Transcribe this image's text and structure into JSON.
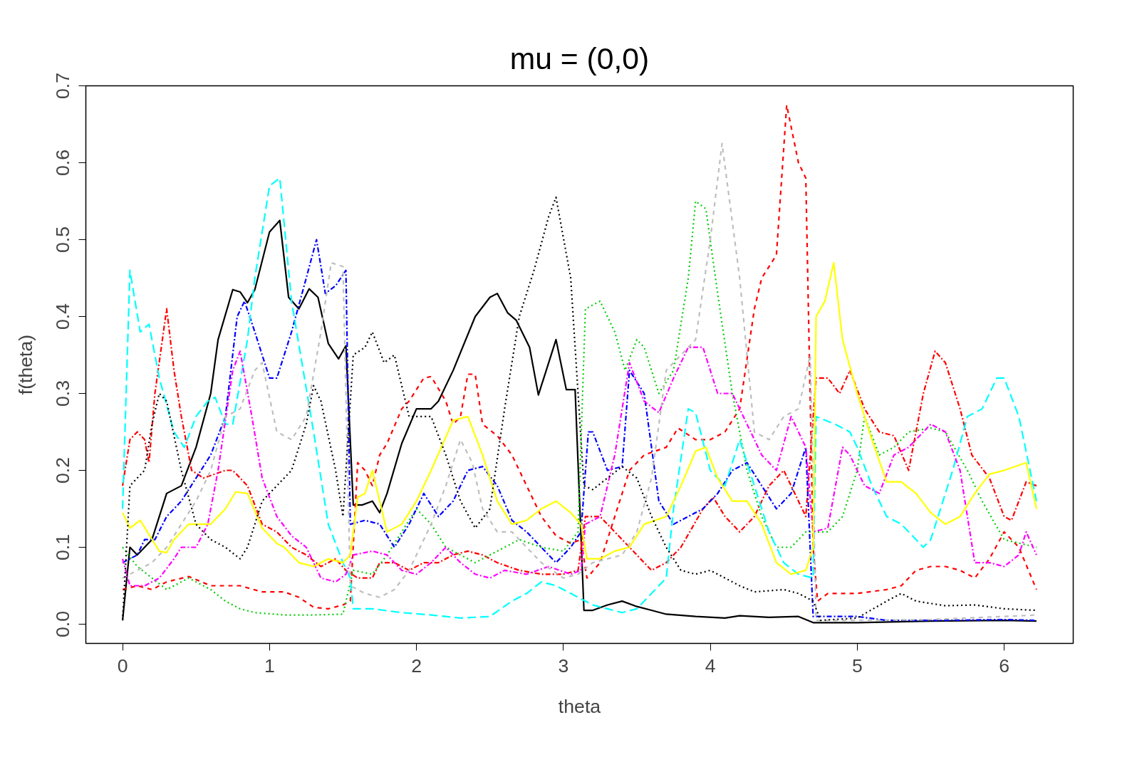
{
  "chart_data": {
    "type": "line",
    "title": "mu = (0,0)",
    "xlabel": "theta",
    "ylabel": "f(theta)",
    "xlim": [
      -0.25,
      6.47
    ],
    "ylim": [
      -0.025,
      0.7
    ],
    "xticks": [
      0,
      1,
      2,
      3,
      4,
      5,
      6
    ],
    "yticks": [
      {
        "value": 0,
        "label": "0.0"
      },
      0.1,
      0.2,
      0.3,
      0.4,
      0.5,
      0.6,
      0.7
    ],
    "grid": false,
    "marker": "none",
    "series": [
      {
        "color": "#000000",
        "line_style": "solid",
        "x": [
          0,
          0.05,
          0.1,
          0.2,
          0.3,
          0.4,
          0.5,
          0.6,
          0.65,
          0.75,
          0.8,
          0.85,
          0.9,
          1.0,
          1.07,
          1.13,
          1.2,
          1.27,
          1.33,
          1.4,
          1.47,
          1.52,
          1.57,
          1.63,
          1.7,
          1.75,
          1.8,
          1.9,
          2.0,
          2.1,
          2.15,
          2.25,
          2.4,
          2.5,
          2.55,
          2.62,
          2.68,
          2.77,
          2.83,
          2.9,
          2.95,
          3.02,
          3.08,
          3.14,
          3.2,
          3.3,
          3.4,
          3.5,
          3.6,
          3.7,
          3.9,
          4.1,
          4.2,
          4.4,
          4.6,
          4.7,
          5.0,
          5.5,
          6.0,
          6.22
        ],
        "values": [
          0.005,
          0.1,
          0.09,
          0.11,
          0.17,
          0.18,
          0.23,
          0.3,
          0.37,
          0.435,
          0.432,
          0.418,
          0.435,
          0.51,
          0.525,
          0.425,
          0.41,
          0.436,
          0.425,
          0.365,
          0.345,
          0.362,
          0.155,
          0.155,
          0.16,
          0.145,
          0.17,
          0.235,
          0.28,
          0.28,
          0.29,
          0.33,
          0.4,
          0.425,
          0.43,
          0.405,
          0.395,
          0.36,
          0.298,
          0.34,
          0.37,
          0.305,
          0.305,
          0.018,
          0.018,
          0.025,
          0.03,
          0.023,
          0.018,
          0.013,
          0.01,
          0.008,
          0.011,
          0.009,
          0.01,
          0.002,
          0.002,
          0.004,
          0.005,
          0.004
        ]
      },
      {
        "color": "#ff0000",
        "line_style": "dashed",
        "x": [
          0,
          0.1,
          0.2,
          0.3,
          0.45,
          0.6,
          0.8,
          0.95,
          1.1,
          1.2,
          1.3,
          1.4,
          1.5,
          1.55,
          1.6,
          1.65,
          1.7,
          1.75,
          1.8,
          1.9,
          1.95,
          2.05,
          2.1,
          2.2,
          2.25,
          2.3,
          2.35,
          2.4,
          2.45,
          2.55,
          2.65,
          2.75,
          2.85,
          2.95,
          3.05,
          3.12,
          3.16,
          3.25,
          3.35,
          3.45,
          3.55,
          3.7,
          3.78,
          3.9,
          4.0,
          4.1,
          4.2,
          4.3,
          4.35,
          4.45,
          4.52,
          4.6,
          4.65,
          4.7,
          4.73,
          4.8,
          5.0,
          5.2,
          5.3,
          5.4,
          5.5,
          5.6,
          5.7,
          5.8,
          5.9,
          6.0,
          6.1,
          6.22
        ],
        "values": [
          0.045,
          0.05,
          0.045,
          0.055,
          0.062,
          0.05,
          0.05,
          0.042,
          0.042,
          0.035,
          0.022,
          0.02,
          0.025,
          0.03,
          0.21,
          0.2,
          0.18,
          0.22,
          0.235,
          0.28,
          0.29,
          0.32,
          0.322,
          0.29,
          0.26,
          0.27,
          0.325,
          0.325,
          0.26,
          0.245,
          0.22,
          0.18,
          0.14,
          0.115,
          0.105,
          0.11,
          0.06,
          0.08,
          0.14,
          0.2,
          0.22,
          0.23,
          0.255,
          0.24,
          0.24,
          0.25,
          0.28,
          0.41,
          0.45,
          0.48,
          0.675,
          0.6,
          0.58,
          0.1,
          0.03,
          0.04,
          0.04,
          0.045,
          0.05,
          0.07,
          0.075,
          0.075,
          0.07,
          0.06,
          0.085,
          0.12,
          0.1,
          0.045
        ]
      },
      {
        "color": "#ff0000",
        "line_style": "dashdot",
        "x": [
          0,
          0.05,
          0.1,
          0.15,
          0.18,
          0.22,
          0.3,
          0.35,
          0.4,
          0.47,
          0.55,
          0.7,
          0.75,
          0.85,
          0.95,
          1.05,
          1.15,
          1.25,
          1.35,
          1.45,
          1.52,
          1.6,
          1.7,
          1.75,
          1.85,
          1.95,
          2.05,
          2.15,
          2.25,
          2.35,
          2.45,
          2.55,
          2.7,
          2.85,
          3.0,
          3.1,
          3.15,
          3.25,
          3.3,
          3.4,
          3.5,
          3.6,
          3.7,
          3.8,
          3.95,
          4.02,
          4.1,
          4.2,
          4.3,
          4.4,
          4.5,
          4.6,
          4.65,
          4.72,
          4.8,
          4.88,
          4.95,
          5.05,
          5.15,
          5.25,
          5.35,
          5.45,
          5.53,
          5.6,
          5.7,
          5.78,
          5.9,
          6.0,
          6.05,
          6.15,
          6.22
        ],
        "values": [
          0.18,
          0.24,
          0.25,
          0.24,
          0.21,
          0.3,
          0.41,
          0.33,
          0.27,
          0.2,
          0.19,
          0.2,
          0.2,
          0.18,
          0.13,
          0.12,
          0.1,
          0.09,
          0.075,
          0.085,
          0.07,
          0.06,
          0.06,
          0.08,
          0.08,
          0.07,
          0.08,
          0.08,
          0.09,
          0.095,
          0.09,
          0.08,
          0.07,
          0.065,
          0.065,
          0.07,
          0.14,
          0.14,
          0.13,
          0.11,
          0.09,
          0.07,
          0.08,
          0.1,
          0.15,
          0.165,
          0.14,
          0.12,
          0.14,
          0.18,
          0.2,
          0.16,
          0.14,
          0.32,
          0.32,
          0.3,
          0.33,
          0.28,
          0.25,
          0.245,
          0.2,
          0.3,
          0.355,
          0.34,
          0.28,
          0.22,
          0.19,
          0.14,
          0.135,
          0.185,
          0.18
        ]
      },
      {
        "color": "#00cd00",
        "line_style": "dotted",
        "x": [
          0,
          0.1,
          0.2,
          0.3,
          0.4,
          0.45,
          0.6,
          0.7,
          0.8,
          0.9,
          1.1,
          1.3,
          1.5,
          1.57,
          1.7,
          1.8,
          1.9,
          2.0,
          2.1,
          2.2,
          2.3,
          2.4,
          2.5,
          2.6,
          2.7,
          2.85,
          3.0,
          3.1,
          3.15,
          3.25,
          3.35,
          3.42,
          3.5,
          3.55,
          3.65,
          3.75,
          3.85,
          3.9,
          3.97,
          4.05,
          4.15,
          4.25,
          4.35,
          4.45,
          4.55,
          4.65,
          4.7,
          4.8,
          4.9,
          5.0,
          5.05,
          5.15,
          5.25,
          5.35,
          5.5,
          5.6,
          5.75,
          5.85,
          6.0,
          6.22
        ],
        "values": [
          0.1,
          0.075,
          0.06,
          0.045,
          0.055,
          0.06,
          0.045,
          0.03,
          0.02,
          0.015,
          0.012,
          0.012,
          0.013,
          0.07,
          0.065,
          0.09,
          0.12,
          0.15,
          0.13,
          0.1,
          0.09,
          0.08,
          0.09,
          0.1,
          0.11,
          0.1,
          0.095,
          0.12,
          0.41,
          0.42,
          0.38,
          0.33,
          0.37,
          0.36,
          0.3,
          0.33,
          0.45,
          0.55,
          0.54,
          0.43,
          0.3,
          0.2,
          0.14,
          0.1,
          0.1,
          0.12,
          0.12,
          0.12,
          0.14,
          0.2,
          0.27,
          0.22,
          0.23,
          0.25,
          0.255,
          0.25,
          0.2,
          0.16,
          0.11,
          0.1
        ]
      },
      {
        "color": "#0000ff",
        "line_style": "dashdot",
        "x": [
          0,
          0.05,
          0.1,
          0.15,
          0.22,
          0.3,
          0.4,
          0.5,
          0.6,
          0.7,
          0.78,
          0.83,
          0.9,
          1.0,
          1.05,
          1.15,
          1.25,
          1.32,
          1.38,
          1.45,
          1.52,
          1.55,
          1.65,
          1.75,
          1.85,
          1.95,
          2.05,
          2.15,
          2.25,
          2.35,
          2.45,
          2.55,
          2.65,
          2.75,
          2.85,
          2.95,
          3.05,
          3.12,
          3.17,
          3.2,
          3.3,
          3.4,
          3.45,
          3.55,
          3.65,
          3.75,
          3.85,
          3.95,
          4.05,
          4.15,
          4.25,
          4.35,
          4.45,
          4.55,
          4.65,
          4.7,
          5.0,
          5.2,
          5.6,
          6.0,
          6.22
        ],
        "values": [
          0.08,
          0.085,
          0.09,
          0.11,
          0.11,
          0.14,
          0.16,
          0.19,
          0.22,
          0.27,
          0.4,
          0.42,
          0.38,
          0.32,
          0.32,
          0.38,
          0.45,
          0.5,
          0.43,
          0.44,
          0.46,
          0.13,
          0.135,
          0.13,
          0.1,
          0.13,
          0.17,
          0.14,
          0.16,
          0.2,
          0.205,
          0.18,
          0.135,
          0.12,
          0.1,
          0.08,
          0.1,
          0.12,
          0.25,
          0.25,
          0.2,
          0.205,
          0.33,
          0.3,
          0.16,
          0.13,
          0.14,
          0.15,
          0.17,
          0.2,
          0.21,
          0.18,
          0.15,
          0.17,
          0.23,
          0.01,
          0.01,
          0.005,
          0.005,
          0.006,
          0.005
        ]
      },
      {
        "color": "#00ffff",
        "line_style": "longdash",
        "x": [
          0,
          0.05,
          0.12,
          0.18,
          0.25,
          0.35,
          0.42,
          0.5,
          0.58,
          0.63,
          0.7,
          0.75,
          0.85,
          0.9,
          1.0,
          1.07,
          1.15,
          1.3,
          1.4,
          1.5,
          1.55,
          1.57,
          1.7,
          1.9,
          2.1,
          2.3,
          2.5,
          2.65,
          2.75,
          2.85,
          2.95,
          3.05,
          3.1,
          3.2,
          3.3,
          3.4,
          3.5,
          3.6,
          3.7,
          3.75,
          3.85,
          3.9,
          4.0,
          4.1,
          4.2,
          4.3,
          4.4,
          4.5,
          4.6,
          4.7,
          4.72,
          4.85,
          4.95,
          5.0,
          5.1,
          5.2,
          5.3,
          5.45,
          5.5,
          5.65,
          5.75,
          5.85,
          5.95,
          6.0,
          6.1,
          6.22
        ],
        "values": [
          0.15,
          0.46,
          0.38,
          0.39,
          0.32,
          0.25,
          0.23,
          0.27,
          0.29,
          0.295,
          0.26,
          0.26,
          0.37,
          0.45,
          0.57,
          0.58,
          0.42,
          0.25,
          0.13,
          0.08,
          0.06,
          0.02,
          0.02,
          0.015,
          0.012,
          0.008,
          0.01,
          0.03,
          0.04,
          0.055,
          0.05,
          0.04,
          0.035,
          0.025,
          0.02,
          0.015,
          0.02,
          0.04,
          0.06,
          0.15,
          0.28,
          0.275,
          0.2,
          0.18,
          0.24,
          0.18,
          0.12,
          0.08,
          0.065,
          0.06,
          0.27,
          0.26,
          0.25,
          0.23,
          0.18,
          0.14,
          0.13,
          0.1,
          0.11,
          0.2,
          0.27,
          0.28,
          0.32,
          0.32,
          0.27,
          0.16
        ]
      },
      {
        "color": "#ff00ff",
        "line_style": "dashdot",
        "x": [
          0,
          0.05,
          0.15,
          0.25,
          0.35,
          0.4,
          0.5,
          0.58,
          0.65,
          0.75,
          0.8,
          0.88,
          0.95,
          1.05,
          1.15,
          1.25,
          1.35,
          1.45,
          1.52,
          1.57,
          1.7,
          1.8,
          1.9,
          2.0,
          2.1,
          2.2,
          2.3,
          2.4,
          2.5,
          2.6,
          2.75,
          2.9,
          3.05,
          3.12,
          3.15,
          3.25,
          3.35,
          3.45,
          3.55,
          3.65,
          3.75,
          3.85,
          3.95,
          4.05,
          4.15,
          4.25,
          4.35,
          4.45,
          4.55,
          4.65,
          4.7,
          4.8,
          4.9,
          4.95,
          5.05,
          5.15,
          5.25,
          5.35,
          5.5,
          5.6,
          5.7,
          5.8,
          5.9,
          6.0,
          6.1,
          6.15,
          6.22
        ],
        "values": [
          0.085,
          0.05,
          0.05,
          0.06,
          0.085,
          0.1,
          0.1,
          0.13,
          0.2,
          0.33,
          0.355,
          0.27,
          0.19,
          0.14,
          0.115,
          0.1,
          0.06,
          0.055,
          0.065,
          0.09,
          0.095,
          0.09,
          0.07,
          0.065,
          0.08,
          0.1,
          0.08,
          0.065,
          0.06,
          0.07,
          0.065,
          0.075,
          0.065,
          0.07,
          0.13,
          0.14,
          0.22,
          0.34,
          0.29,
          0.275,
          0.32,
          0.36,
          0.36,
          0.3,
          0.3,
          0.26,
          0.22,
          0.2,
          0.27,
          0.23,
          0.12,
          0.125,
          0.23,
          0.22,
          0.18,
          0.17,
          0.22,
          0.23,
          0.26,
          0.25,
          0.2,
          0.08,
          0.08,
          0.075,
          0.09,
          0.12,
          0.09
        ]
      },
      {
        "color": "#bebebe",
        "line_style": "dashed",
        "x": [
          0,
          0.1,
          0.2,
          0.3,
          0.4,
          0.5,
          0.6,
          0.7,
          0.8,
          0.9,
          0.95,
          1.05,
          1.15,
          1.25,
          1.35,
          1.42,
          1.5,
          1.55,
          1.65,
          1.75,
          1.85,
          1.95,
          2.1,
          2.2,
          2.3,
          2.38,
          2.45,
          2.55,
          2.65,
          2.75,
          2.85,
          3.0,
          3.1,
          3.2,
          3.3,
          3.4,
          3.5,
          3.6,
          3.7,
          3.8,
          3.9,
          4.0,
          4.08,
          4.2,
          4.3,
          4.4,
          4.5,
          4.6,
          4.68,
          4.72,
          5.0,
          5.5,
          6.0,
          6.22
        ],
        "values": [
          0.06,
          0.07,
          0.08,
          0.1,
          0.13,
          0.16,
          0.2,
          0.27,
          0.28,
          0.33,
          0.34,
          0.25,
          0.24,
          0.27,
          0.38,
          0.47,
          0.465,
          0.05,
          0.04,
          0.035,
          0.045,
          0.07,
          0.13,
          0.18,
          0.24,
          0.21,
          0.15,
          0.12,
          0.12,
          0.1,
          0.08,
          0.06,
          0.065,
          0.08,
          0.085,
          0.09,
          0.12,
          0.19,
          0.33,
          0.35,
          0.37,
          0.5,
          0.625,
          0.45,
          0.25,
          0.24,
          0.27,
          0.28,
          0.35,
          0.005,
          0.005,
          0.006,
          0.01,
          0.012
        ]
      },
      {
        "color": "#ffff00",
        "line_style": "solid",
        "x": [
          0,
          0.05,
          0.12,
          0.25,
          0.3,
          0.35,
          0.45,
          0.6,
          0.7,
          0.77,
          0.85,
          0.95,
          1.05,
          1.1,
          1.2,
          1.3,
          1.4,
          1.5,
          1.55,
          1.6,
          1.65,
          1.7,
          1.8,
          1.9,
          2.0,
          2.1,
          2.25,
          2.35,
          2.45,
          2.55,
          2.65,
          2.75,
          2.85,
          2.95,
          3.05,
          3.12,
          3.16,
          3.25,
          3.35,
          3.45,
          3.55,
          3.7,
          3.8,
          3.9,
          3.97,
          4.05,
          4.15,
          4.25,
          4.35,
          4.45,
          4.55,
          4.65,
          4.7,
          4.72,
          4.78,
          4.84,
          4.9,
          5.0,
          5.1,
          5.2,
          5.3,
          5.4,
          5.5,
          5.6,
          5.7,
          5.8,
          5.9,
          6.0,
          6.15,
          6.22
        ],
        "values": [
          0.145,
          0.125,
          0.135,
          0.095,
          0.093,
          0.11,
          0.13,
          0.13,
          0.15,
          0.172,
          0.17,
          0.125,
          0.105,
          0.1,
          0.08,
          0.075,
          0.085,
          0.08,
          0.09,
          0.165,
          0.17,
          0.2,
          0.12,
          0.13,
          0.16,
          0.2,
          0.265,
          0.27,
          0.22,
          0.16,
          0.13,
          0.135,
          0.15,
          0.16,
          0.145,
          0.13,
          0.085,
          0.085,
          0.095,
          0.1,
          0.13,
          0.14,
          0.18,
          0.225,
          0.23,
          0.19,
          0.16,
          0.16,
          0.13,
          0.08,
          0.065,
          0.07,
          0.1,
          0.4,
          0.42,
          0.47,
          0.37,
          0.3,
          0.24,
          0.185,
          0.185,
          0.17,
          0.145,
          0.13,
          0.14,
          0.17,
          0.195,
          0.2,
          0.21,
          0.15
        ]
      },
      {
        "color": "#000000",
        "line_style": "dotted",
        "x": [
          0,
          0.05,
          0.1,
          0.15,
          0.2,
          0.25,
          0.3,
          0.4,
          0.5,
          0.6,
          0.7,
          0.8,
          0.85,
          0.95,
          1.05,
          1.15,
          1.25,
          1.3,
          1.35,
          1.45,
          1.5,
          1.57,
          1.65,
          1.7,
          1.78,
          1.85,
          1.95,
          2.1,
          2.2,
          2.3,
          2.4,
          2.5,
          2.6,
          2.7,
          2.8,
          2.9,
          2.95,
          3.05,
          3.14,
          3.2,
          3.3,
          3.4,
          3.5,
          3.6,
          3.7,
          3.8,
          3.9,
          4.0,
          4.2,
          4.3,
          4.5,
          4.6,
          4.7,
          4.75,
          5.0,
          5.2,
          5.3,
          5.4,
          5.6,
          5.8,
          6.0,
          6.22
        ],
        "values": [
          0.005,
          0.18,
          0.19,
          0.2,
          0.26,
          0.3,
          0.29,
          0.2,
          0.13,
          0.11,
          0.1,
          0.085,
          0.1,
          0.16,
          0.18,
          0.2,
          0.26,
          0.31,
          0.29,
          0.2,
          0.14,
          0.35,
          0.36,
          0.38,
          0.34,
          0.35,
          0.27,
          0.27,
          0.22,
          0.16,
          0.125,
          0.15,
          0.28,
          0.4,
          0.46,
          0.53,
          0.555,
          0.45,
          0.18,
          0.175,
          0.19,
          0.205,
          0.19,
          0.14,
          0.1,
          0.07,
          0.065,
          0.07,
          0.05,
          0.042,
          0.045,
          0.04,
          0.03,
          0.005,
          0.008,
          0.03,
          0.04,
          0.03,
          0.024,
          0.025,
          0.02,
          0.018
        ]
      }
    ]
  }
}
